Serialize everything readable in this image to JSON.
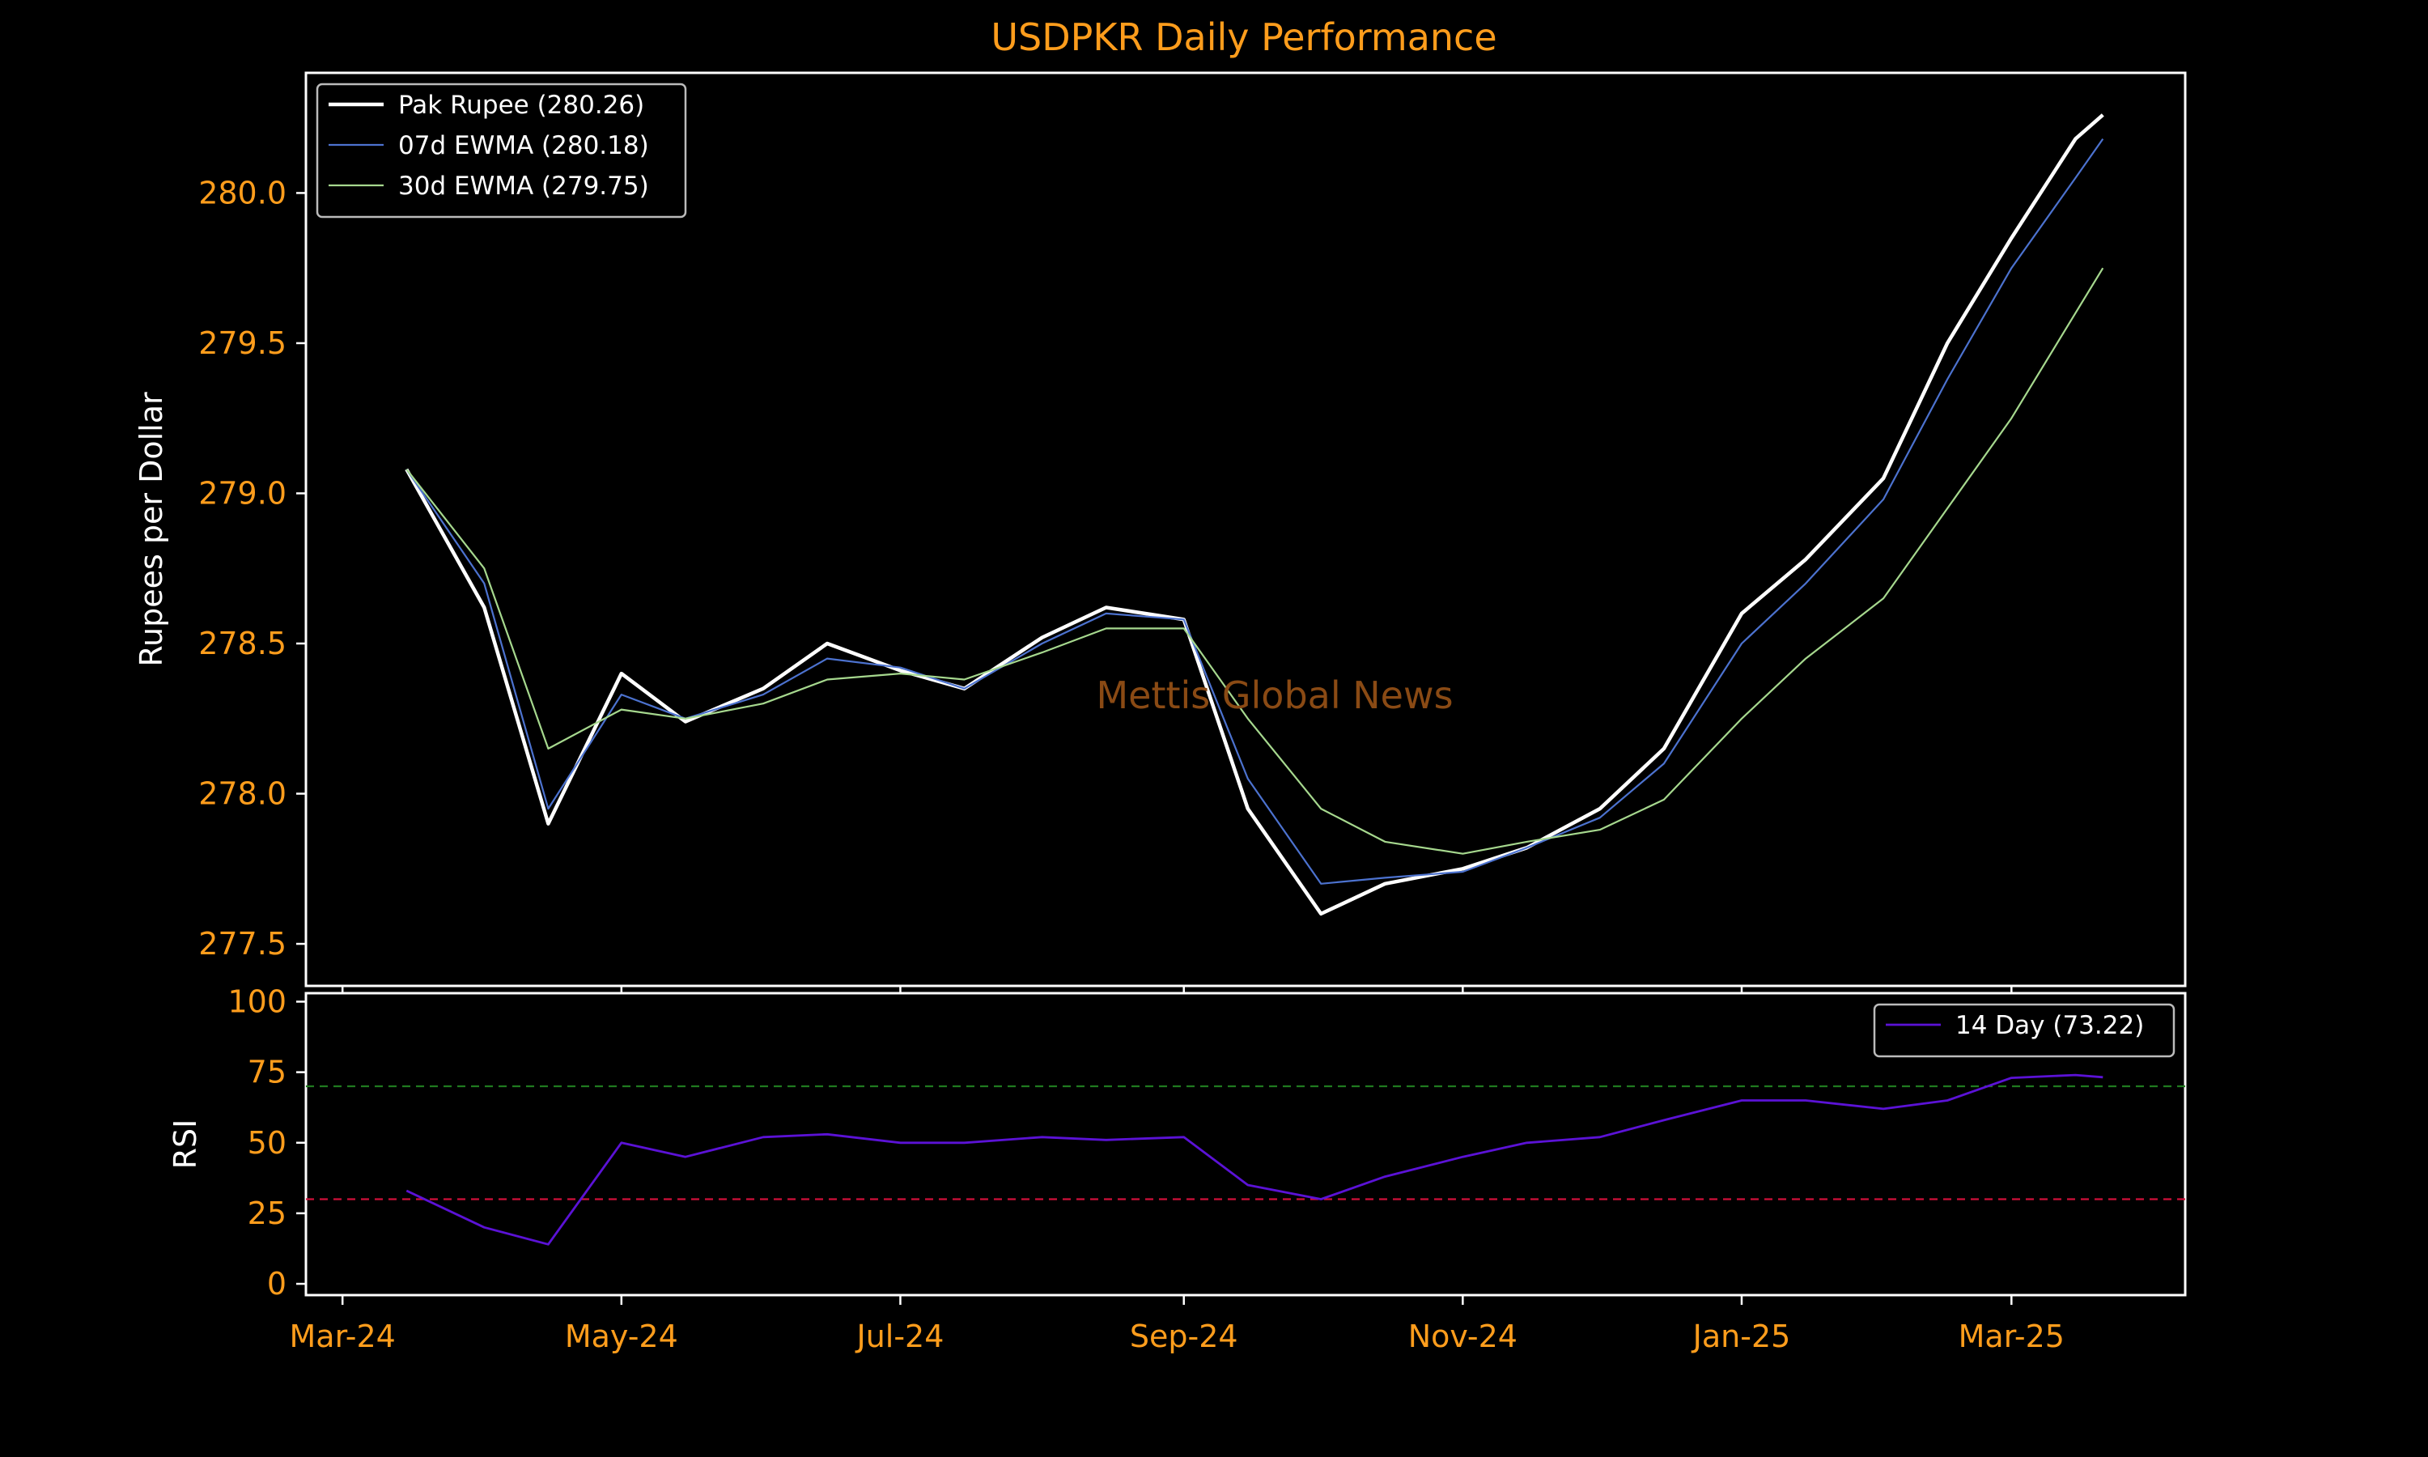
{
  "chart_data": [
    {
      "type": "line",
      "title": "USDPKR Daily Performance",
      "watermark": "Mettis Global News",
      "ylabel": "Rupees per Dollar",
      "xlabel": "",
      "ylim": [
        277.36,
        280.4
      ],
      "yticks": [
        277.5,
        278.0,
        278.5,
        279.0,
        279.5,
        280.0
      ],
      "ytick_labels": [
        "277.5",
        "278.0",
        "278.5",
        "279.0",
        "279.5",
        "280.0"
      ],
      "x": [
        "2024-03-15",
        "2024-04-01",
        "2024-04-15",
        "2024-05-01",
        "2024-05-15",
        "2024-06-01",
        "2024-06-15",
        "2024-07-01",
        "2024-07-15",
        "2024-08-01",
        "2024-08-15",
        "2024-09-01",
        "2024-09-15",
        "2024-10-01",
        "2024-10-15",
        "2024-11-01",
        "2024-11-15",
        "2024-12-01",
        "2024-12-15",
        "2025-01-01",
        "2025-01-15",
        "2025-02-01",
        "2025-02-15",
        "2025-03-01",
        "2025-03-15",
        "2025-03-21"
      ],
      "series": [
        {
          "name": "Pak Rupee (280.26)",
          "color": "#ffffff",
          "values": [
            279.08,
            278.62,
            277.9,
            278.4,
            278.24,
            278.35,
            278.5,
            278.41,
            278.35,
            278.52,
            278.62,
            278.58,
            277.95,
            277.6,
            277.7,
            277.75,
            277.82,
            277.95,
            278.15,
            278.6,
            278.78,
            279.05,
            279.5,
            279.85,
            280.18,
            280.26
          ]
        },
        {
          "name": "07d EWMA (280.18)",
          "color": "#4c72cf",
          "values": [
            279.08,
            278.7,
            277.95,
            278.33,
            278.25,
            278.33,
            278.45,
            278.42,
            278.35,
            278.5,
            278.6,
            278.58,
            278.05,
            277.7,
            277.72,
            277.74,
            277.82,
            277.92,
            278.1,
            278.5,
            278.7,
            278.98,
            279.38,
            279.75,
            280.05,
            280.18
          ]
        },
        {
          "name": "30d EWMA (279.75)",
          "color": "#a6d88e",
          "values": [
            279.08,
            278.75,
            278.15,
            278.28,
            278.25,
            278.3,
            278.38,
            278.4,
            278.38,
            278.47,
            278.55,
            278.55,
            278.25,
            277.95,
            277.84,
            277.8,
            277.84,
            277.88,
            277.98,
            278.25,
            278.45,
            278.65,
            278.95,
            279.25,
            279.6,
            279.75
          ]
        }
      ],
      "legend": "top-left",
      "grid": false
    },
    {
      "type": "line",
      "ylabel": "RSI",
      "ylim": [
        -4,
        103
      ],
      "yticks": [
        0,
        25,
        50,
        75,
        100
      ],
      "ytick_labels": [
        "0",
        "25",
        "50",
        "75",
        "100"
      ],
      "x": [
        "2024-03-15",
        "2024-04-01",
        "2024-04-15",
        "2024-05-01",
        "2024-05-15",
        "2024-06-01",
        "2024-06-15",
        "2024-07-01",
        "2024-07-15",
        "2024-08-01",
        "2024-08-15",
        "2024-09-01",
        "2024-09-15",
        "2024-10-01",
        "2024-10-15",
        "2024-11-01",
        "2024-11-15",
        "2024-12-01",
        "2024-12-15",
        "2025-01-01",
        "2025-01-15",
        "2025-02-01",
        "2025-02-15",
        "2025-03-01",
        "2025-03-15",
        "2025-03-21"
      ],
      "series": [
        {
          "name": "14 Day (73.22)",
          "color": "#5b12d6",
          "values": [
            33,
            20,
            14,
            50,
            45,
            52,
            53,
            50,
            50,
            52,
            51,
            52,
            35,
            30,
            38,
            45,
            50,
            52,
            58,
            65,
            65,
            62,
            65,
            73,
            74,
            73.22
          ]
        }
      ],
      "reference_lines": [
        {
          "value": 70,
          "color": "#1f7a1f"
        },
        {
          "value": 30,
          "color": "#d0103a"
        }
      ],
      "legend": "top-right",
      "grid": false
    }
  ],
  "x_axis": {
    "ticks": [
      "2024-03-01",
      "2024-05-01",
      "2024-07-01",
      "2024-09-01",
      "2024-11-01",
      "2025-01-01",
      "2025-03-01"
    ],
    "tick_labels": [
      "Mar-24",
      "May-24",
      "Jul-24",
      "Sep-24",
      "Nov-24",
      "Jan-25",
      "Mar-25"
    ],
    "range": [
      "2024-02-22",
      "2025-04-08"
    ]
  },
  "colors": {
    "background": "#000000",
    "frame": "#ffffff",
    "tick_label": "#ff9d1c",
    "title": "#ff9d1c",
    "watermark": "#8a4a14"
  }
}
